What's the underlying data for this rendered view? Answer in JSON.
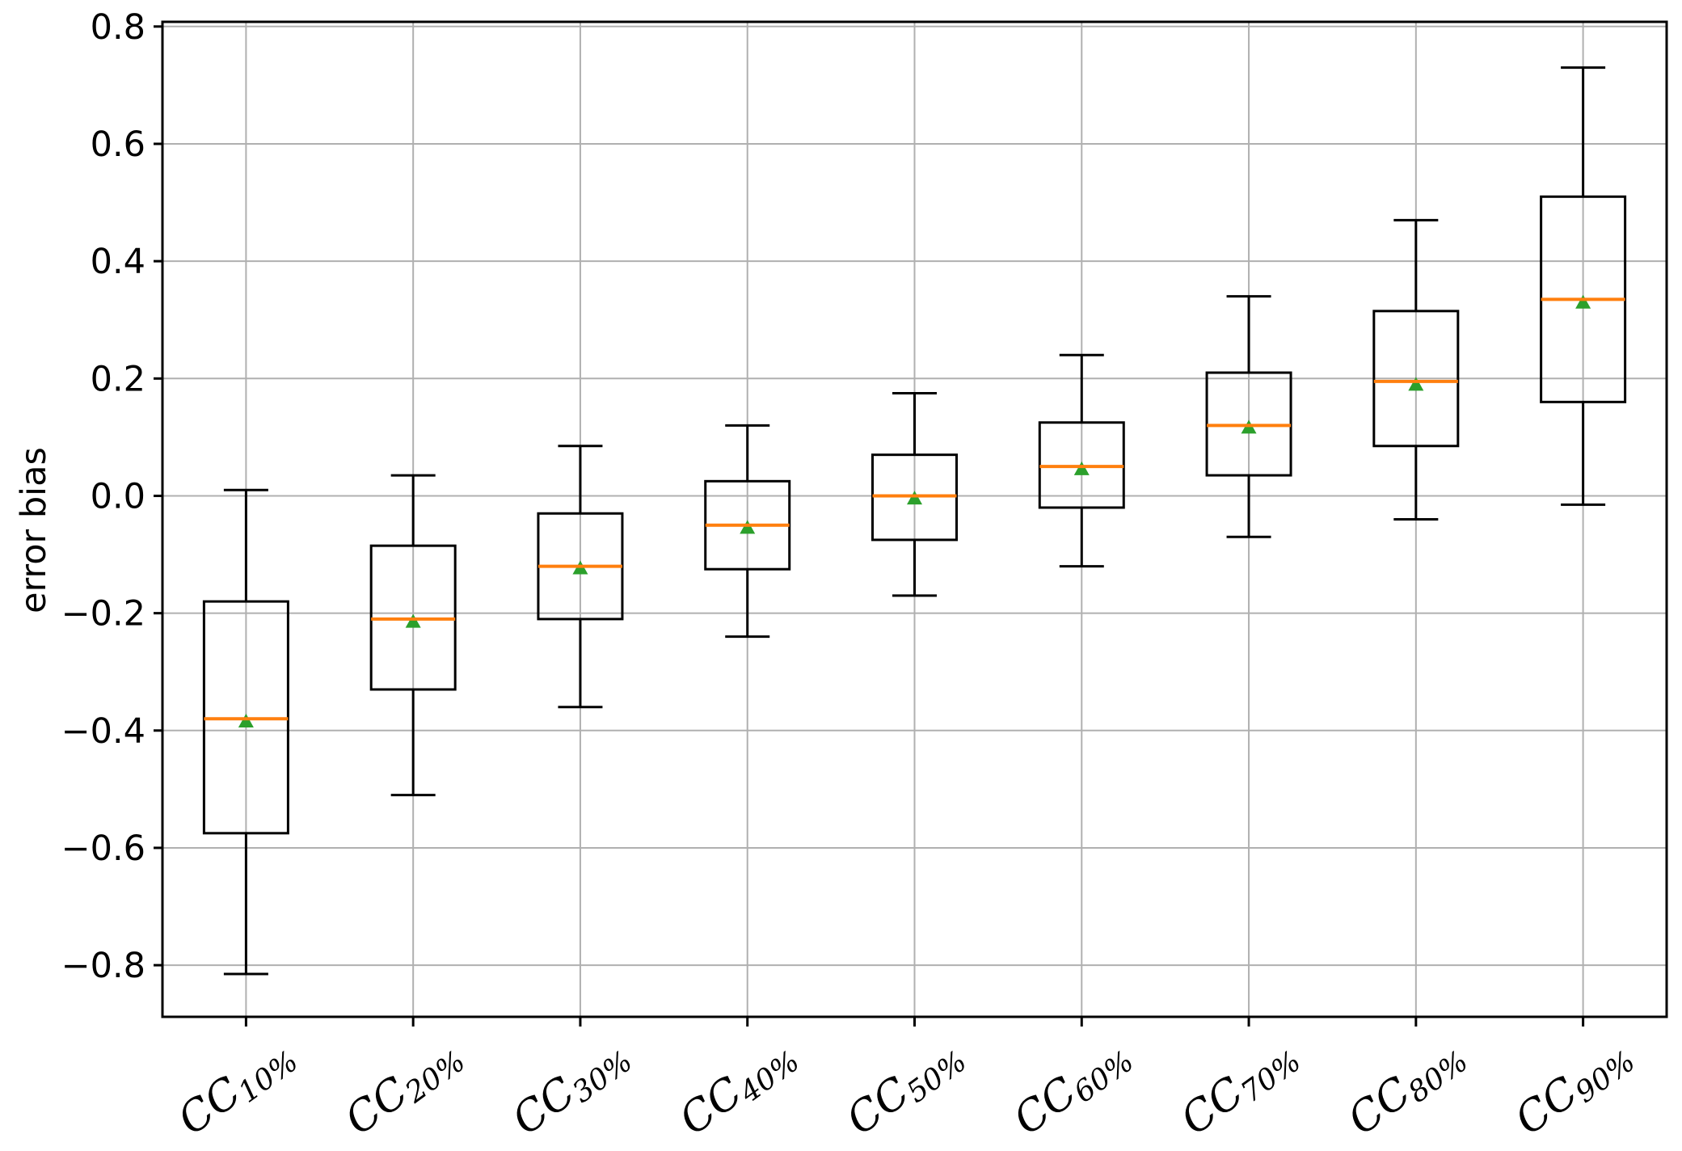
{
  "chart_data": {
    "type": "boxplot",
    "title": "",
    "xlabel": "",
    "ylabel": "error bias",
    "grid": true,
    "legend": "none",
    "ylim": [
      -0.888,
      0.808
    ],
    "yticks": [
      0.8,
      0.6,
      0.4,
      0.2,
      0.0,
      -0.2,
      -0.4,
      -0.6,
      -0.8
    ],
    "ytick_labels": [
      "0.8",
      "0.6",
      "0.4",
      "0.2",
      "0.0",
      "−0.2",
      "−0.4",
      "−0.6",
      "−0.8"
    ],
    "categories": [
      {
        "base": "CC",
        "sub": "10%"
      },
      {
        "base": "CC",
        "sub": "20%"
      },
      {
        "base": "CC",
        "sub": "30%"
      },
      {
        "base": "CC",
        "sub": "40%"
      },
      {
        "base": "CC",
        "sub": "50%"
      },
      {
        "base": "CC",
        "sub": "60%"
      },
      {
        "base": "CC",
        "sub": "70%"
      },
      {
        "base": "CC",
        "sub": "80%"
      },
      {
        "base": "CC",
        "sub": "90%"
      }
    ],
    "series": [
      {
        "label": "CC10%",
        "whislo": -0.815,
        "q1": -0.575,
        "med": -0.38,
        "mean": -0.383,
        "q3": -0.18,
        "whishi": 0.01
      },
      {
        "label": "CC20%",
        "whislo": -0.51,
        "q1": -0.33,
        "med": -0.21,
        "mean": -0.213,
        "q3": -0.085,
        "whishi": 0.035
      },
      {
        "label": "CC30%",
        "whislo": -0.36,
        "q1": -0.21,
        "med": -0.12,
        "mean": -0.122,
        "q3": -0.03,
        "whishi": 0.085
      },
      {
        "label": "CC40%",
        "whislo": -0.24,
        "q1": -0.125,
        "med": -0.05,
        "mean": -0.053,
        "q3": 0.025,
        "whishi": 0.12
      },
      {
        "label": "CC50%",
        "whislo": -0.17,
        "q1": -0.075,
        "med": 0.0,
        "mean": -0.003,
        "q3": 0.07,
        "whishi": 0.175
      },
      {
        "label": "CC60%",
        "whislo": -0.12,
        "q1": -0.02,
        "med": 0.05,
        "mean": 0.047,
        "q3": 0.125,
        "whishi": 0.24
      },
      {
        "label": "CC70%",
        "whislo": -0.07,
        "q1": 0.035,
        "med": 0.12,
        "mean": 0.118,
        "q3": 0.21,
        "whishi": 0.34
      },
      {
        "label": "CC80%",
        "whislo": -0.04,
        "q1": 0.085,
        "med": 0.195,
        "mean": 0.191,
        "q3": 0.315,
        "whishi": 0.47
      },
      {
        "label": "CC90%",
        "whislo": -0.015,
        "q1": 0.16,
        "med": 0.335,
        "mean": 0.331,
        "q3": 0.51,
        "whishi": 0.73
      }
    ],
    "colors": {
      "median": "#ff7f0e",
      "mean_marker": "#2ca02c",
      "box_stroke": "#000000",
      "grid": "#b0b0b0",
      "background": "#ffffff",
      "text": "#000000"
    },
    "marker_style": "filled green triangle at mean"
  }
}
